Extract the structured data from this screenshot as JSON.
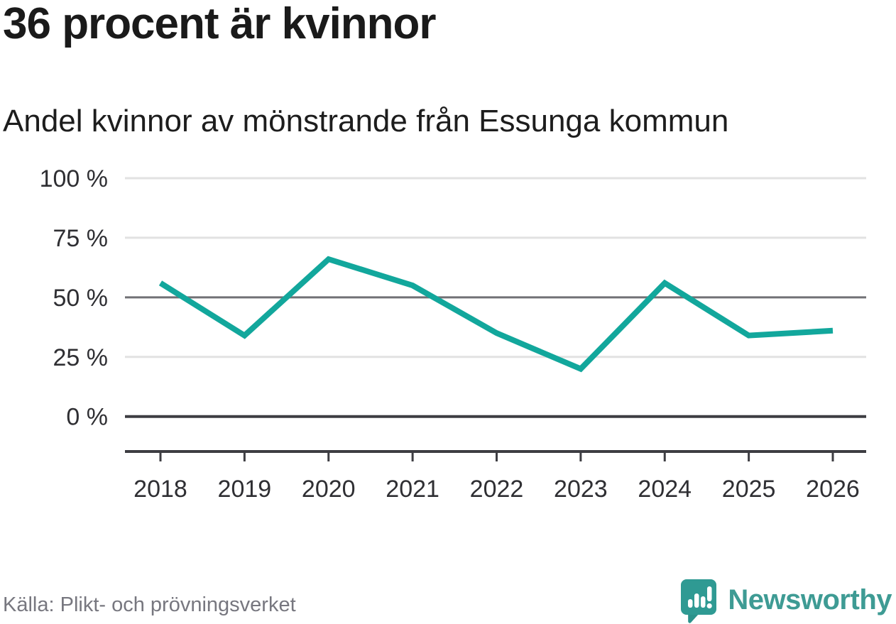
{
  "title": "36 procent är kvinnor",
  "subtitle": "Andel kvinnor av mönstrande från Essunga kommun",
  "source": "Källa: Plikt- och prövningsverket",
  "brand": {
    "name": "Newsworthy",
    "icon": "newsworthy-speech-bubble-barchart-icon",
    "text_color": "#3e9b94",
    "icon_color": "#2f9a93",
    "icon_tail_shade": "#25837d"
  },
  "colors": {
    "line": "#12a79c",
    "grid_light": "#e2e2e2",
    "grid_mid": "#717175",
    "axis_dark": "#3d3d42",
    "title_text": "#1a1a1a",
    "axis_text": "#2f2f33",
    "source_text": "#77777f"
  },
  "chart_data": {
    "type": "line",
    "title": "36 procent är kvinnor",
    "subtitle": "Andel kvinnor av mönstrande från Essunga kommun",
    "x": [
      2018,
      2019,
      2020,
      2021,
      2022,
      2023,
      2024,
      2025,
      2026
    ],
    "x_labels": [
      "2018",
      "2019",
      "2020",
      "2021",
      "2022",
      "2023",
      "2024",
      "2025",
      "2026"
    ],
    "series": [
      {
        "name": "Andel kvinnor av mönstrande",
        "unit": "%",
        "values": [
          56,
          34,
          66,
          55,
          35,
          20,
          56,
          34,
          36
        ]
      }
    ],
    "ylim": [
      0,
      100
    ],
    "yticks": [
      {
        "value": 100,
        "label": "100 %",
        "emphasis": "light"
      },
      {
        "value": 75,
        "label": "75 %",
        "emphasis": "light"
      },
      {
        "value": 50,
        "label": "50 %",
        "emphasis": "mid"
      },
      {
        "value": 25,
        "label": "25 %",
        "emphasis": "light"
      },
      {
        "value": 0,
        "label": "0 %",
        "emphasis": "strong"
      }
    ],
    "grid": true,
    "legend": "none"
  }
}
